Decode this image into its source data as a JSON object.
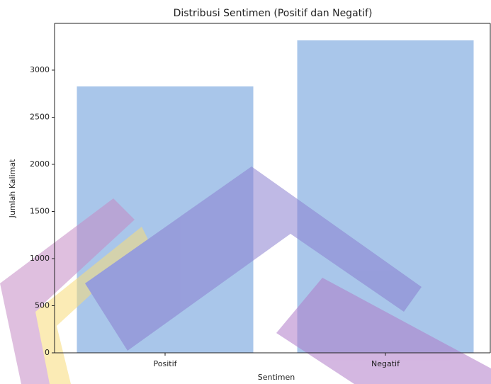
{
  "chart_data": {
    "type": "bar",
    "title": "Distribusi Sentimen (Positif dan Negatif)",
    "x_label": "Sentimen",
    "y_label": "Jumlah Kalimat",
    "categories": [
      "Positif",
      "Negatif"
    ],
    "values": [
      2827,
      3316
    ],
    "color": "#a9c6ea",
    "ylim": [
      0,
      3496
    ],
    "yticks": [
      0,
      500,
      1000,
      1500,
      2000,
      2500,
      3000
    ]
  }
}
